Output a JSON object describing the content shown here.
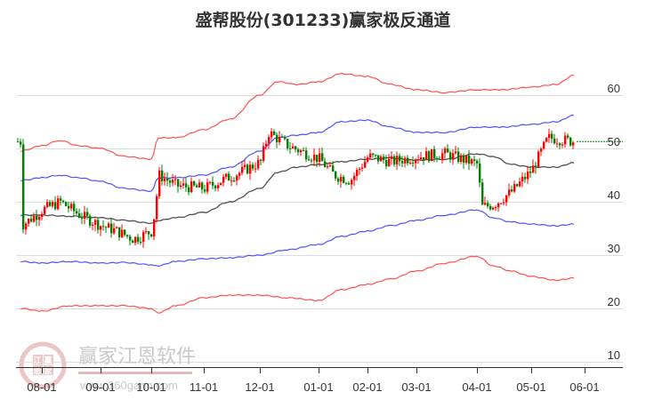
{
  "title": "盛帮股份(301233)赢家极反通道",
  "watermark": {
    "brand": "赢家江恩软件",
    "url": "www.360gann.com",
    "seal": [
      "江",
      "赢",
      "恩",
      "家"
    ]
  },
  "colors": {
    "up": "#ff0000",
    "down": "#008000",
    "outer_band": "#ff3333",
    "inner_band": "#3333ff",
    "middle_line": "#333333",
    "last_price_line": "#008000",
    "grid": "#dddddd"
  },
  "chart_data": {
    "type": "candlestick",
    "title": "盛帮股份(301233)赢家极反通道",
    "xlabel": "",
    "ylabel": "",
    "ylim": [
      10,
      65
    ],
    "y_ticks": [
      60,
      50,
      40,
      30,
      20,
      10
    ],
    "x_ticks": [
      "08-01",
      "09-01",
      "10-01",
      "11-01",
      "12-01",
      "01-01",
      "02-01",
      "03-01",
      "04-01",
      "05-01",
      "06-01"
    ],
    "grid": true,
    "legend": null,
    "last_price": 51.3,
    "series": [
      {
        "name": "upper_outer_band",
        "color": "red",
        "x": [
          "07-20",
          "08-01",
          "08-10",
          "08-20",
          "09-01",
          "09-15",
          "10-01",
          "10-05",
          "10-15",
          "11-01",
          "11-15",
          "12-01",
          "12-10",
          "12-20",
          "01-01",
          "01-15",
          "02-01",
          "02-15",
          "03-01",
          "03-15",
          "04-01",
          "04-15",
          "05-01",
          "05-15",
          "05-25"
        ],
        "values": [
          49.5,
          50.5,
          51.5,
          50.5,
          50.0,
          48.5,
          48.0,
          52.0,
          52.0,
          53.5,
          55.5,
          60.0,
          62.5,
          62.0,
          62.5,
          64.0,
          63.5,
          62.0,
          61.0,
          60.5,
          61.0,
          61.0,
          61.5,
          62.0,
          63.7
        ]
      },
      {
        "name": "upper_inner_band",
        "color": "blue",
        "x": [
          "07-20",
          "08-01",
          "08-10",
          "08-20",
          "09-01",
          "09-15",
          "10-01",
          "10-05",
          "10-15",
          "11-01",
          "11-15",
          "12-01",
          "12-10",
          "12-20",
          "01-01",
          "01-15",
          "02-01",
          "02-15",
          "03-01",
          "03-15",
          "04-01",
          "04-15",
          "05-01",
          "05-15",
          "05-25"
        ],
        "values": [
          44.0,
          44.5,
          45.0,
          44.5,
          43.8,
          42.5,
          42.0,
          44.5,
          44.5,
          45.0,
          46.5,
          49.5,
          52.0,
          52.5,
          53.0,
          55.0,
          55.3,
          54.0,
          53.0,
          53.0,
          54.0,
          54.0,
          54.5,
          55.0,
          56.2
        ]
      },
      {
        "name": "middle_line",
        "color": "black",
        "x": [
          "07-20",
          "08-01",
          "08-15",
          "09-01",
          "09-15",
          "10-01",
          "10-05",
          "10-15",
          "11-01",
          "11-15",
          "12-01",
          "12-10",
          "12-20",
          "01-01",
          "01-15",
          "02-01",
          "02-15",
          "03-01",
          "03-15",
          "04-01",
          "04-10",
          "04-20",
          "05-01",
          "05-15",
          "05-25"
        ],
        "values": [
          37.5,
          37.5,
          37.3,
          37.0,
          36.5,
          36.0,
          36.5,
          37.0,
          38.0,
          40.0,
          42.5,
          45.5,
          46.5,
          47.0,
          47.5,
          48.0,
          48.2,
          47.8,
          48.0,
          49.0,
          48.5,
          47.0,
          46.5,
          46.5,
          47.3
        ]
      },
      {
        "name": "lower_inner_band",
        "color": "blue",
        "x": [
          "07-20",
          "08-01",
          "08-15",
          "09-01",
          "09-15",
          "10-01",
          "10-05",
          "10-15",
          "11-01",
          "11-15",
          "12-01",
          "12-15",
          "01-01",
          "01-15",
          "02-01",
          "02-15",
          "03-01",
          "03-15",
          "04-01",
          "04-10",
          "04-20",
          "05-01",
          "05-15",
          "05-25"
        ],
        "values": [
          28.8,
          28.5,
          28.8,
          28.5,
          28.6,
          28.2,
          28.0,
          28.8,
          29.3,
          29.5,
          30.0,
          31.0,
          32.0,
          33.5,
          34.5,
          35.5,
          36.5,
          37.5,
          38.5,
          37.0,
          36.2,
          35.8,
          35.5,
          35.8
        ]
      },
      {
        "name": "lower_outer_band",
        "color": "red",
        "x": [
          "07-20",
          "08-01",
          "08-15",
          "09-01",
          "09-15",
          "10-01",
          "10-05",
          "10-15",
          "11-01",
          "11-15",
          "12-01",
          "12-15",
          "01-01",
          "01-15",
          "02-01",
          "02-15",
          "03-01",
          "03-15",
          "04-01",
          "04-10",
          "04-20",
          "05-01",
          "05-15",
          "05-25"
        ],
        "values": [
          20.0,
          19.5,
          20.5,
          20.5,
          20.5,
          20.0,
          19.2,
          20.5,
          22.0,
          22.5,
          22.5,
          22.0,
          21.5,
          23.5,
          24.5,
          25.5,
          27.0,
          28.5,
          29.8,
          28.0,
          27.0,
          26.0,
          25.3,
          25.7
        ]
      },
      {
        "name": "price_close_approx",
        "color": "red/green candles",
        "x": [
          "07-20",
          "08-01",
          "08-10",
          "08-20",
          "09-01",
          "09-10",
          "09-20",
          "10-01",
          "10-05",
          "10-15",
          "11-01",
          "11-10",
          "11-20",
          "12-01",
          "12-05",
          "12-15",
          "01-01",
          "01-10",
          "01-20",
          "02-01",
          "02-15",
          "03-01",
          "03-15",
          "04-01",
          "04-03",
          "04-10",
          "04-20",
          "05-01",
          "05-10",
          "05-20",
          "05-25"
        ],
        "values": [
          35.5,
          38.5,
          40.0,
          37.5,
          35.5,
          34.5,
          33.0,
          34.5,
          45.0,
          43.0,
          42.5,
          44.0,
          45.5,
          47.5,
          53.0,
          50.5,
          48.0,
          45.0,
          44.0,
          48.5,
          47.5,
          48.5,
          49.0,
          47.0,
          39.0,
          39.5,
          42.0,
          46.0,
          52.0,
          51.5,
          51.3
        ]
      }
    ]
  }
}
